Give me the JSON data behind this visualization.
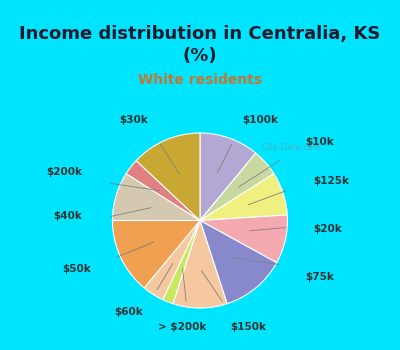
{
  "title": "Income distribution in Centralia, KS\n(%)",
  "subtitle": "White residents",
  "title_color": "#1a1a2e",
  "subtitle_color": "#c07830",
  "background_top": "#00e5ff",
  "background_chart": "#e8f5e9",
  "labels": [
    "$100k",
    "$10k",
    "$125k",
    "$20k",
    "$75k",
    "$150k",
    "> $200k",
    "$60k",
    "$50k",
    "$40k",
    "$200k",
    "$30k"
  ],
  "values": [
    11,
    5,
    8,
    9,
    12,
    10,
    2,
    4,
    14,
    9,
    3,
    13
  ],
  "colors": [
    "#b3a8d4",
    "#c8d8a0",
    "#f0f080",
    "#f4a8b0",
    "#8888cc",
    "#f5c8a0",
    "#c8e860",
    "#f5c8a0",
    "#f0a050",
    "#d4c8b0",
    "#e08080",
    "#c8a832"
  ],
  "startangle": 90,
  "watermark": "City-Data.com"
}
